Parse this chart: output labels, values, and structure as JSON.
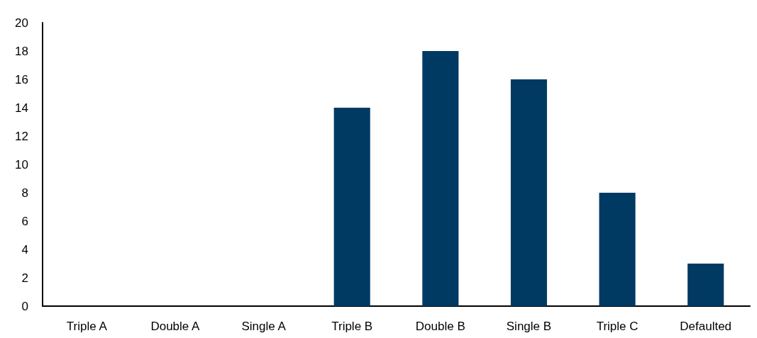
{
  "chart_data": {
    "type": "bar",
    "categories": [
      "Triple A",
      "Double A",
      "Single A",
      "Triple B",
      "Double B",
      "Single B",
      "Triple C",
      "Defaulted"
    ],
    "values": [
      0,
      0,
      0,
      14,
      18,
      16,
      8,
      3
    ],
    "color": "#003a63",
    "ylim": [
      0,
      20
    ],
    "yticks": [
      0,
      2,
      4,
      6,
      8,
      10,
      12,
      14,
      16,
      18,
      20
    ],
    "grid": false
  }
}
